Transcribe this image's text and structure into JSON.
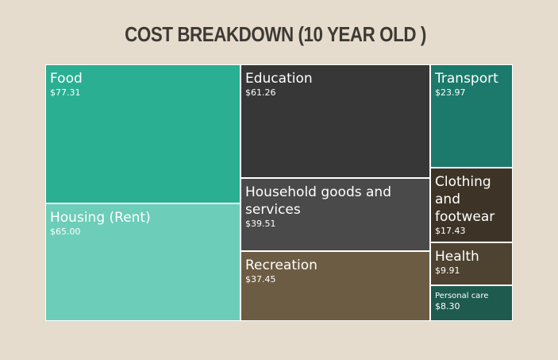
{
  "chart_data": {
    "type": "treemap",
    "title": "COST BREAKDOWN (10 YEAR OLD )",
    "items": [
      {
        "label": "Food",
        "value": 77.31,
        "value_label": "$77.31",
        "color": "#2aaf93"
      },
      {
        "label": "Housing (Rent)",
        "value": 65.0,
        "value_label": "$65.00",
        "color": "#6ccdb9"
      },
      {
        "label": "Education",
        "value": 61.26,
        "value_label": "$61.26",
        "color": "#373737"
      },
      {
        "label": "Household goods and services",
        "value": 39.51,
        "value_label": "$39.51",
        "color": "#4a4a4a"
      },
      {
        "label": "Recreation",
        "value": 37.45,
        "value_label": "$37.45",
        "color": "#6c5c43"
      },
      {
        "label": "Transport",
        "value": 23.97,
        "value_label": "$23.97",
        "color": "#1b7a6b"
      },
      {
        "label": "Clothing and footwear",
        "value": 17.43,
        "value_label": "$17.43",
        "color": "#3d3427"
      },
      {
        "label": "Health",
        "value": 9.91,
        "value_label": "$9.91",
        "color": "#4e4230"
      },
      {
        "label": "Personal care",
        "value": 8.3,
        "value_label": "$8.30",
        "color": "#1e5a4e"
      }
    ]
  }
}
